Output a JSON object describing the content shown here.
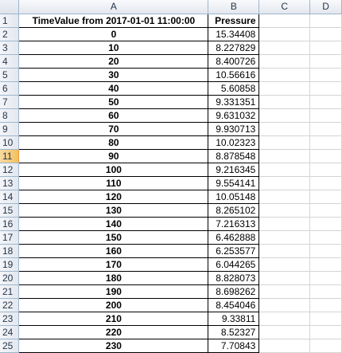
{
  "columns": [
    "A",
    "B",
    "C",
    "D"
  ],
  "selected_row": "11",
  "header_row": {
    "row_num": "1",
    "a": "TimeValue from 2017-01-01 11:00:00",
    "b": "Pressure"
  },
  "rows": [
    {
      "row_num": "2",
      "time": "0",
      "pressure": "15.34408"
    },
    {
      "row_num": "3",
      "time": "10",
      "pressure": "8.227829"
    },
    {
      "row_num": "4",
      "time": "20",
      "pressure": "8.400726"
    },
    {
      "row_num": "5",
      "time": "30",
      "pressure": "10.56616"
    },
    {
      "row_num": "6",
      "time": "40",
      "pressure": "5.60858"
    },
    {
      "row_num": "7",
      "time": "50",
      "pressure": "9.331351"
    },
    {
      "row_num": "8",
      "time": "60",
      "pressure": "9.631032"
    },
    {
      "row_num": "9",
      "time": "70",
      "pressure": "9.930713"
    },
    {
      "row_num": "10",
      "time": "80",
      "pressure": "10.02323"
    },
    {
      "row_num": "11",
      "time": "90",
      "pressure": "8.878548"
    },
    {
      "row_num": "12",
      "time": "100",
      "pressure": "9.216345"
    },
    {
      "row_num": "13",
      "time": "110",
      "pressure": "9.554141"
    },
    {
      "row_num": "14",
      "time": "120",
      "pressure": "10.05148"
    },
    {
      "row_num": "15",
      "time": "130",
      "pressure": "8.265102"
    },
    {
      "row_num": "16",
      "time": "140",
      "pressure": "7.216313"
    },
    {
      "row_num": "17",
      "time": "150",
      "pressure": "6.462888"
    },
    {
      "row_num": "18",
      "time": "160",
      "pressure": "6.253577"
    },
    {
      "row_num": "19",
      "time": "170",
      "pressure": "6.044265"
    },
    {
      "row_num": "20",
      "time": "180",
      "pressure": "8.828073"
    },
    {
      "row_num": "21",
      "time": "190",
      "pressure": "8.698262"
    },
    {
      "row_num": "22",
      "time": "200",
      "pressure": "8.454046"
    },
    {
      "row_num": "23",
      "time": "210",
      "pressure": "9.33811"
    },
    {
      "row_num": "24",
      "time": "220",
      "pressure": "8.52327"
    },
    {
      "row_num": "25",
      "time": "230",
      "pressure": "7.70843"
    }
  ]
}
